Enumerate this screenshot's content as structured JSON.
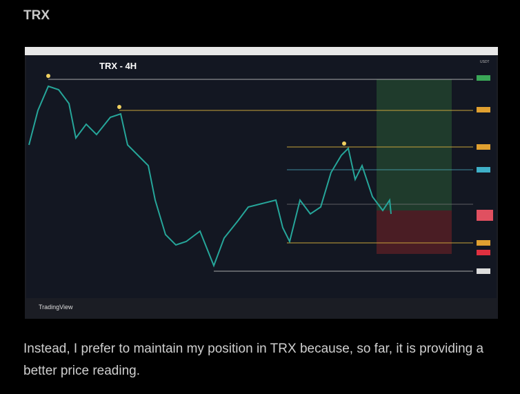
{
  "header": {
    "title": "TRX"
  },
  "image": {
    "title": "TRX - 4H",
    "currency": "USDT",
    "brand": "TradingView"
  },
  "paragraph": "Instead, I prefer to maintain my position in TRX because, so far, it is providing a better price reading."
}
